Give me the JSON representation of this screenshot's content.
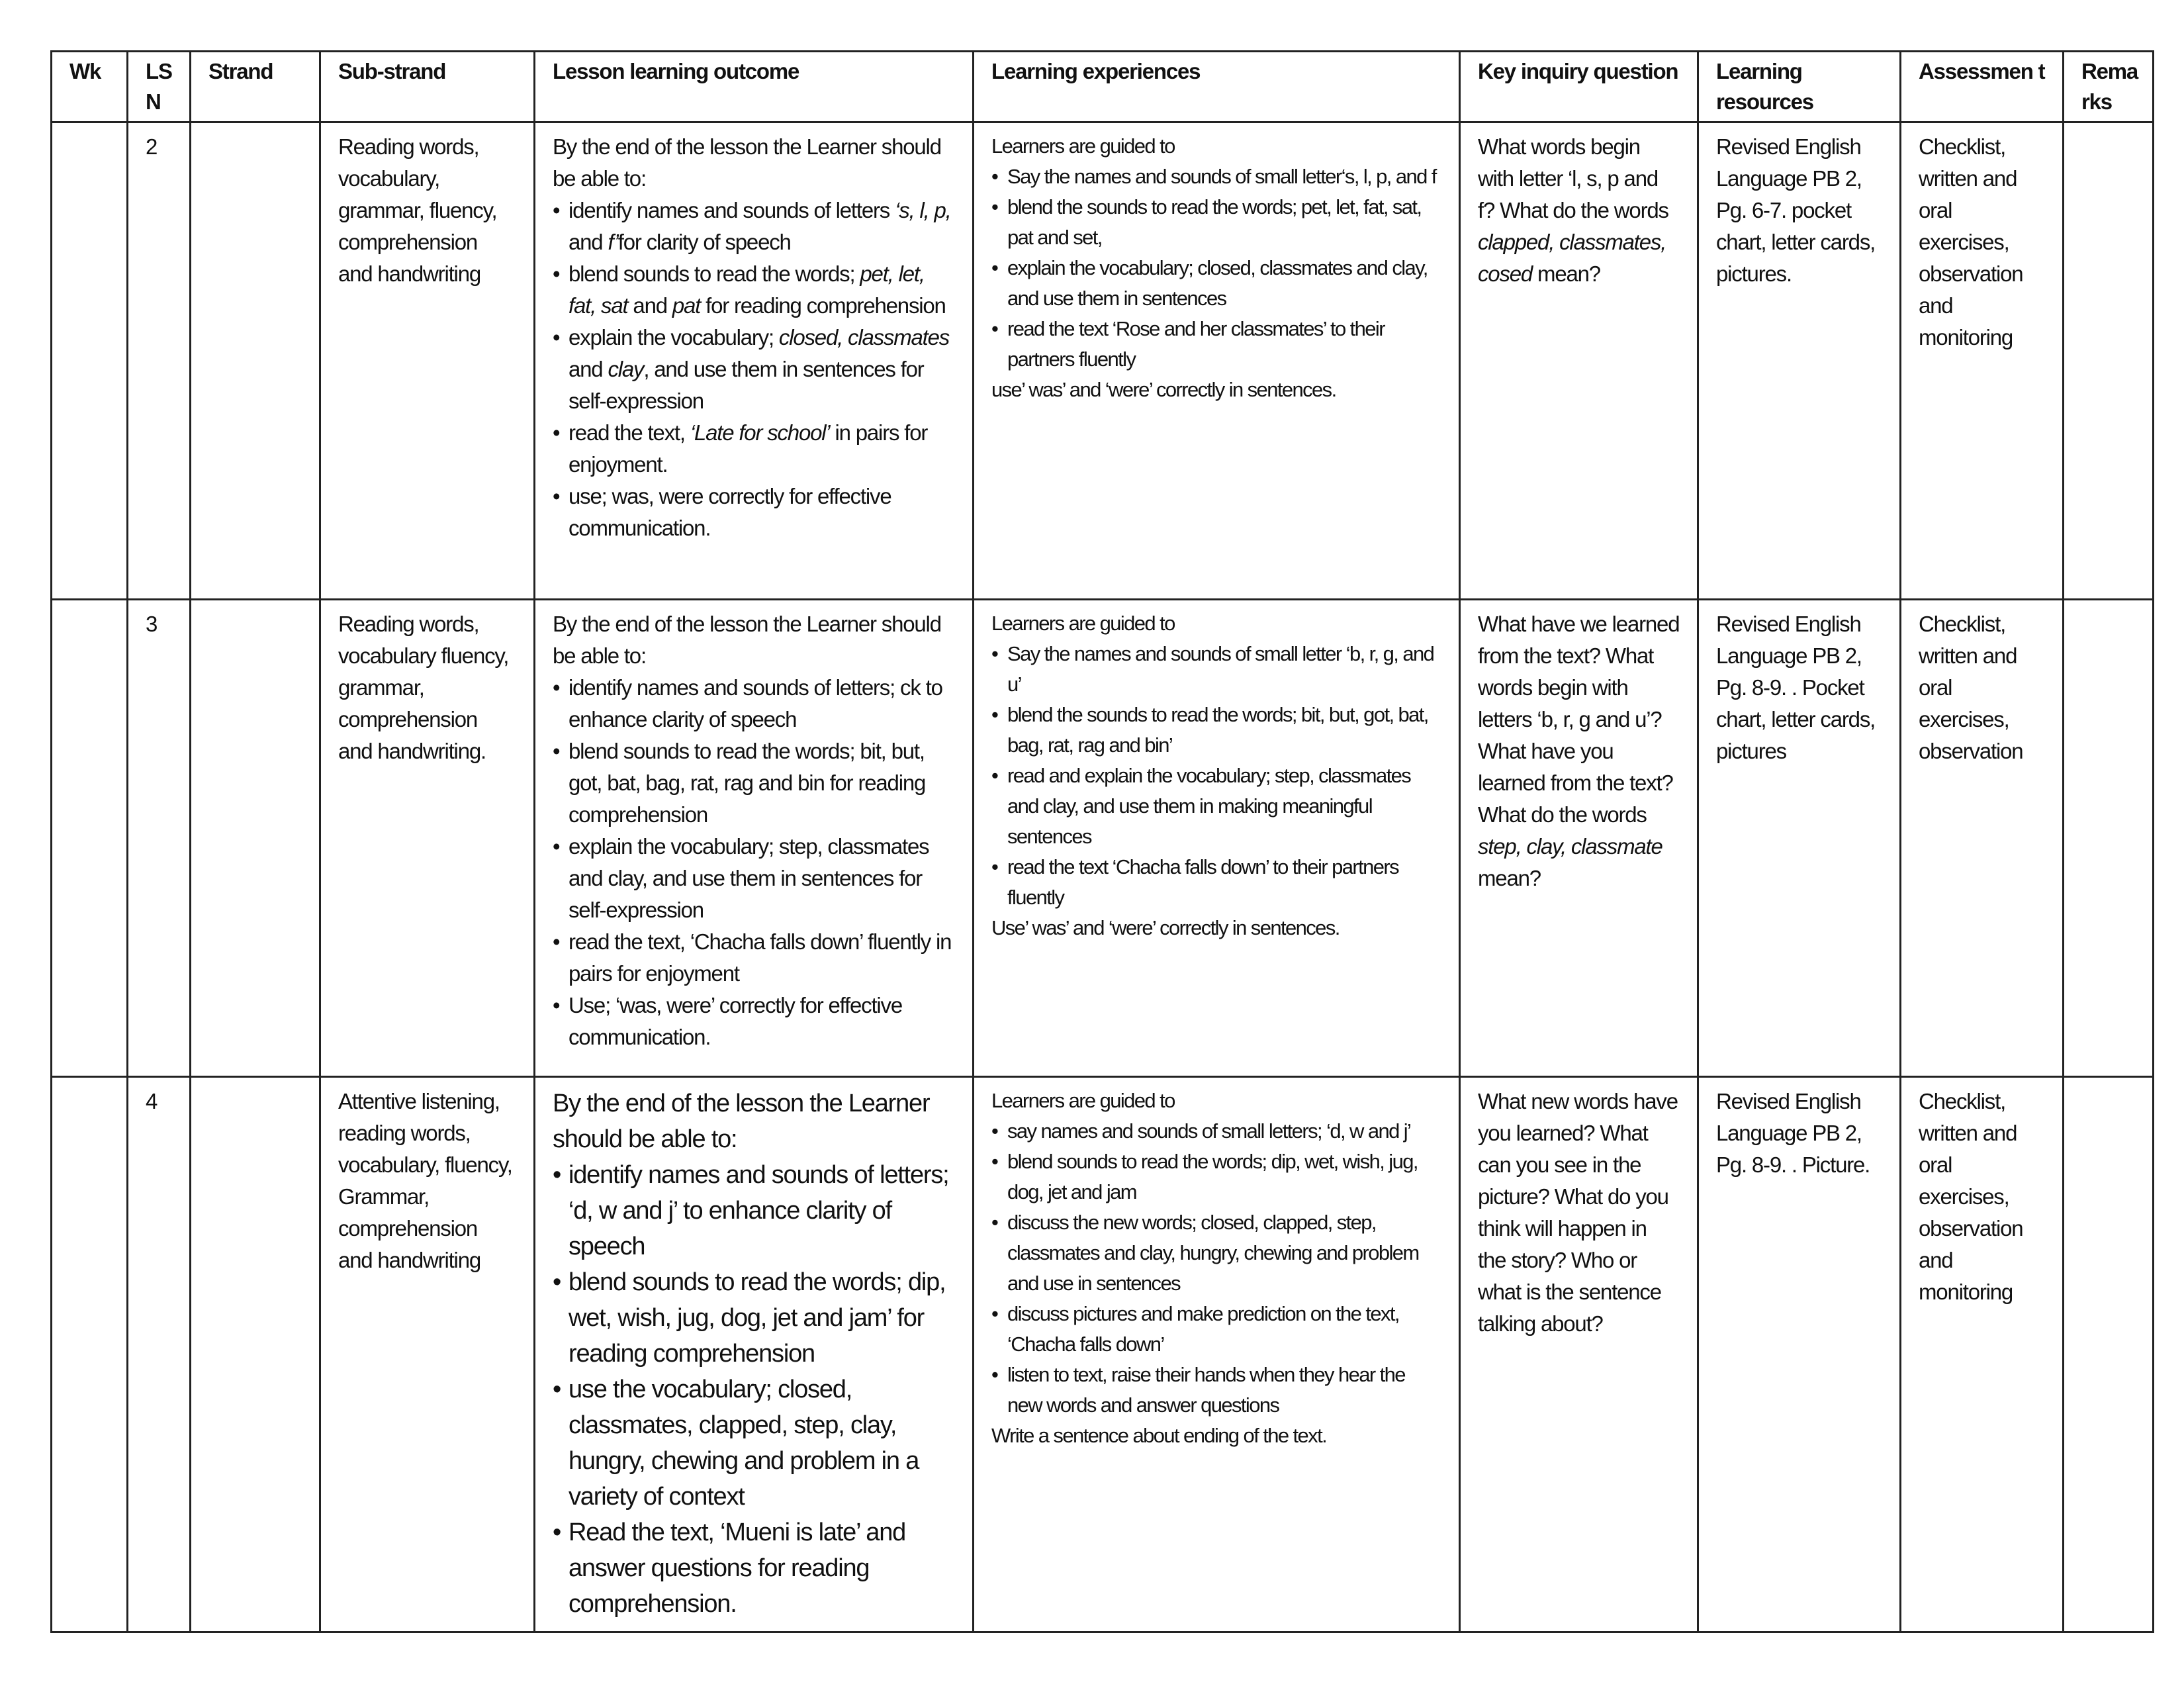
{
  "headers": [
    "Wk",
    "LS N",
    "Strand",
    "Sub-strand",
    "Lesson learning outcome",
    "Learning experiences",
    "Key inquiry question",
    "Learning resources",
    "Assessmen t",
    "Rema rks"
  ],
  "rows": [
    {
      "wk": "",
      "lsn": "2",
      "strand": "",
      "substrand": "Reading words, vocabulary, grammar, fluency, comprehension and handwriting",
      "outcome": {
        "intro": "By the end of the lesson the Learner should be able to:",
        "bullets": [
          [
            {
              "t": "identify names and sounds of letters "
            },
            {
              "t": "‘s, l, p,",
              "i": true
            },
            {
              "t": " and "
            },
            {
              "t": "f’",
              "i": true
            },
            {
              "t": "for clarity of speech"
            }
          ],
          [
            {
              "t": "blend sounds to read the words; "
            },
            {
              "t": "pet, let, fat, sat",
              "i": true
            },
            {
              "t": " and "
            },
            {
              "t": "pat",
              "i": true
            },
            {
              "t": " for reading comprehension"
            }
          ],
          [
            {
              "t": "explain the vocabulary; "
            },
            {
              "t": "closed, classmates",
              "i": true
            },
            {
              "t": " and "
            },
            {
              "t": "clay",
              "i": true
            },
            {
              "t": ", and use them in sentences for self-expression"
            }
          ],
          [
            {
              "t": "read the text, "
            },
            {
              "t": "‘Late for school’",
              "i": true
            },
            {
              "t": " in pairs for enjoyment."
            }
          ],
          [
            {
              "t": "use; was, were correctly for effective communication."
            }
          ]
        ]
      },
      "experiences": {
        "intro": "Learners are guided to",
        "bullets": [
          [
            {
              "t": "Say the names and sounds of small letter‘s, l, p, and f"
            }
          ],
          [
            {
              "t": "blend the sounds to read the words; pet, let, fat, sat, pat and set,"
            }
          ],
          [
            {
              "t": "explain the vocabulary; closed, classmates and clay, and use them in sentences"
            }
          ],
          [
            {
              "t": "read the text ‘Rose and her classmates’ to their partners fluently"
            }
          ]
        ],
        "outro": "use’ was’ and ‘were’ correctly in sentences."
      },
      "inquiry": [
        {
          "t": "What words begin with letter ‘l, s, p and f? What do the words "
        },
        {
          "t": "clapped, classmates, cosed",
          "i": true
        },
        {
          "t": " mean?"
        }
      ],
      "resources": "Revised English Language PB 2, Pg. 6-7. pocket chart, letter cards, pictures.",
      "assessment": "Checklist, written and oral exercises, observation and monitoring",
      "remarks": ""
    },
    {
      "wk": "",
      "lsn": "3",
      "strand": "",
      "substrand": "Reading words, vocabulary fluency, grammar, comprehension and handwriting.",
      "outcome": {
        "intro": "By the end of the lesson the Learner should be able to:",
        "bullets": [
          [
            {
              "t": "identify names and sounds of letters; ck to enhance clarity of speech"
            }
          ],
          [
            {
              "t": "blend sounds to read the words; bit, but, got, bat, bag, rat, rag and bin for reading comprehension"
            }
          ],
          [
            {
              "t": "explain the vocabulary; step, classmates and clay, and use them in sentences for self-expression"
            }
          ],
          [
            {
              "t": "read the text, ‘Chacha falls down’ fluently in pairs for enjoyment"
            }
          ],
          [
            {
              "t": "Use; ‘was, were’ correctly for effective communication."
            }
          ]
        ]
      },
      "experiences": {
        "intro": "Learners are guided to",
        "bullets": [
          [
            {
              "t": "Say the names and sounds of small letter ‘b, r, g, and u’"
            }
          ],
          [
            {
              "t": "blend the sounds to read the words; bit, but, got, bat, bag, rat, rag and bin’"
            }
          ],
          [
            {
              "t": "read and explain the vocabulary; step, classmates and clay, and use them in making meaningful sentences"
            }
          ],
          [
            {
              "t": "read the text ‘Chacha falls down’ to their partners fluently"
            }
          ]
        ],
        "outro": "Use’ was’ and ‘were’ correctly in sentences."
      },
      "inquiry": [
        {
          "t": "What have we learned from the text? What words begin with letters ‘b, r, g and u’? What have you learned from the text? What do the words "
        },
        {
          "t": "step, clay, classmate",
          "i": true
        },
        {
          "t": " mean?"
        }
      ],
      "resources": "Revised English Language PB 2, Pg. 8-9. . Pocket chart, letter cards, pictures",
      "assessment": "Checklist, written and oral exercises, observation",
      "remarks": ""
    },
    {
      "wk": "",
      "lsn": "4",
      "strand": "",
      "substrand": "Attentive listening, reading words, vocabulary, fluency, Grammar, comprehension and handwriting",
      "outcome": {
        "intro": "By the end of the lesson the Learner should be able to:",
        "bullets": [
          [
            {
              "t": "identify names and sounds of letters; ‘d, w and j’ to enhance clarity of speech"
            }
          ],
          [
            {
              "t": "blend sounds to read the words; dip, wet, wish, jug, dog, jet and jam’ for reading comprehension"
            }
          ],
          [
            {
              "t": "use the vocabulary; closed, classmates, clapped, step, clay, hungry, chewing and problem in a variety of context"
            }
          ],
          [
            {
              "t": "Read the text, ‘Mueni is late’ and answer questions for reading comprehension."
            }
          ]
        ]
      },
      "experiences": {
        "intro": "Learners are guided to",
        "bullets": [
          [
            {
              "t": "say names and sounds of small letters; ‘d, w and j’"
            }
          ],
          [
            {
              "t": "blend sounds to read the words; dip, wet, wish, jug, dog, jet and jam"
            }
          ],
          [
            {
              "t": "discuss the new words; closed, clapped, step, classmates and clay, hungry, chewing and problem and use in sentences"
            }
          ],
          [
            {
              "t": "discuss pictures and make prediction on the text,  ‘Chacha falls down’"
            }
          ],
          [
            {
              "t": "listen to text, raise their hands when they hear the new words and answer questions"
            }
          ]
        ],
        "outro": "Write a sentence about ending of the text."
      },
      "inquiry": [
        {
          "t": "What new words have you learned? What can you see in the picture? What do you think will happen in the story? Who or what is the sentence talking about?"
        }
      ],
      "resources": "Revised English Language PB 2, Pg. 8-9. . Picture.",
      "assessment": "Checklist, written and oral exercises, observation and monitoring",
      "remarks": ""
    }
  ]
}
